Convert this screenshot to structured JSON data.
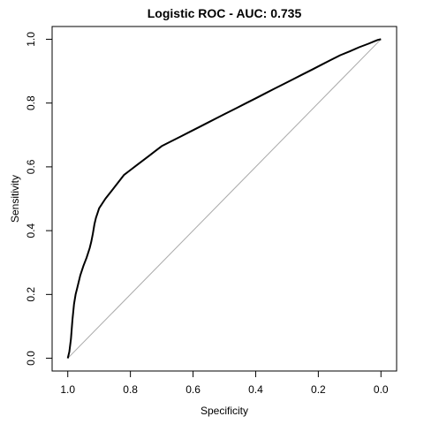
{
  "chart_data": {
    "type": "line",
    "title": "Logistic ROC - AUC: 0.735",
    "xlabel": "Specificity",
    "ylabel": "Sensitivity",
    "xlim": [
      1.05,
      -0.05
    ],
    "ylim": [
      -0.04,
      1.04
    ],
    "x_reversed": true,
    "x_ticks": [
      1.0,
      0.8,
      0.6,
      0.4,
      0.2,
      0.0
    ],
    "x_tick_labels": [
      "1.0",
      "0.8",
      "0.6",
      "0.4",
      "0.2",
      "0.0"
    ],
    "y_ticks": [
      0.0,
      0.2,
      0.4,
      0.6,
      0.8,
      1.0
    ],
    "y_tick_labels": [
      "0.0",
      "0.2",
      "0.4",
      "0.6",
      "0.8",
      "1.0"
    ],
    "grid": false,
    "colors": {
      "roc": "#000000",
      "diagonal": "#aaaaaa"
    },
    "reference_line": {
      "from": [
        1,
        0
      ],
      "to": [
        0,
        1
      ]
    },
    "series": [
      {
        "x": [
          1.0,
          0.995,
          0.99,
          0.985,
          0.98,
          0.975,
          0.97,
          0.96,
          0.95,
          0.94,
          0.93,
          0.925,
          0.92,
          0.915,
          0.91,
          0.905,
          0.9,
          0.88,
          0.86,
          0.84,
          0.82,
          0.8,
          0.78,
          0.76,
          0.74,
          0.72,
          0.7,
          0.67,
          0.64,
          0.61,
          0.58,
          0.55,
          0.52,
          0.49,
          0.46,
          0.43,
          0.4,
          0.37,
          0.34,
          0.31,
          0.28,
          0.25,
          0.22,
          0.19,
          0.16,
          0.13,
          0.1,
          0.07,
          0.04,
          0.02,
          0.01,
          0.0
        ],
        "y": [
          0.0,
          0.02,
          0.06,
          0.12,
          0.17,
          0.2,
          0.22,
          0.26,
          0.29,
          0.315,
          0.345,
          0.365,
          0.39,
          0.42,
          0.44,
          0.455,
          0.47,
          0.5,
          0.525,
          0.55,
          0.575,
          0.59,
          0.605,
          0.62,
          0.635,
          0.65,
          0.665,
          0.68,
          0.695,
          0.71,
          0.725,
          0.74,
          0.755,
          0.77,
          0.785,
          0.8,
          0.815,
          0.83,
          0.845,
          0.86,
          0.875,
          0.89,
          0.905,
          0.92,
          0.935,
          0.95,
          0.962,
          0.975,
          0.986,
          0.994,
          0.998,
          1.0
        ]
      }
    ]
  }
}
